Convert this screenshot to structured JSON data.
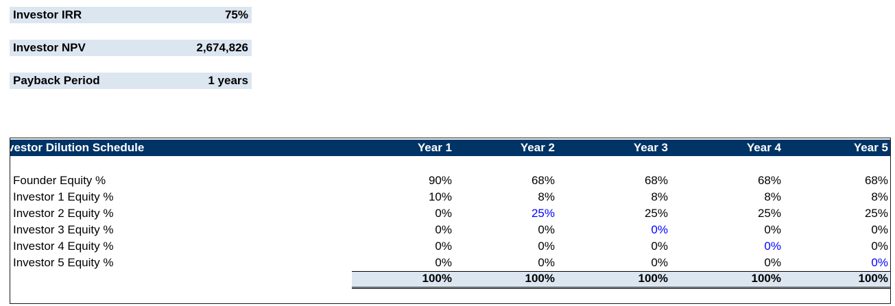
{
  "metrics": [
    {
      "label": "Investor IRR",
      "value": "75%"
    },
    {
      "label": "Investor NPV",
      "value": "2,674,826"
    },
    {
      "label": "Payback Period",
      "value": "1 years"
    }
  ],
  "table": {
    "title": "vestor Dilution Schedule",
    "columns": [
      "Year 1",
      "Year 2",
      "Year 3",
      "Year 4",
      "Year 5"
    ],
    "rows": [
      {
        "label": "Founder Equity %",
        "values": [
          "90%",
          "68%",
          "68%",
          "68%",
          "68%"
        ]
      },
      {
        "label": "Investor 1 Equity %",
        "values": [
          "10%",
          "8%",
          "8%",
          "8%",
          "8%"
        ]
      },
      {
        "label": "Investor 2 Equity %",
        "values": [
          "0%",
          "25%",
          "25%",
          "25%",
          "25%"
        ]
      },
      {
        "label": "Investor 3 Equity %",
        "values": [
          "0%",
          "0%",
          "0%",
          "0%",
          "0%"
        ]
      },
      {
        "label": "Investor 4 Equity %",
        "values": [
          "0%",
          "0%",
          "0%",
          "0%",
          "0%"
        ]
      },
      {
        "label": "Investor 5 Equity %",
        "values": [
          "0%",
          "0%",
          "0%",
          "0%",
          "0%"
        ]
      }
    ],
    "totals": [
      "100%",
      "100%",
      "100%",
      "100%",
      "100%"
    ]
  }
}
